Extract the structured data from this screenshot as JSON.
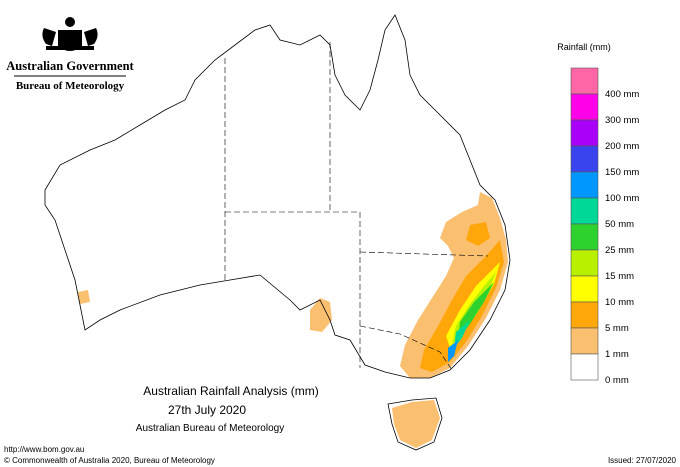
{
  "header": {
    "agency": "Australian Government",
    "bureau": "Bureau of Meteorology"
  },
  "legend": {
    "title": "Rainfall (mm)",
    "items": [
      {
        "color": "#ff66a6",
        "label": "400 mm"
      },
      {
        "color": "#ff00e8",
        "label": "300 mm"
      },
      {
        "color": "#a800f8",
        "label": "200 mm"
      },
      {
        "color": "#3a44ee",
        "label": "150 mm"
      },
      {
        "color": "#0098ff",
        "label": "100 mm"
      },
      {
        "color": "#00d898",
        "label": "50 mm"
      },
      {
        "color": "#2ed22e",
        "label": "25 mm"
      },
      {
        "color": "#b8f000",
        "label": "15 mm"
      },
      {
        "color": "#ffff00",
        "label": "10 mm"
      },
      {
        "color": "#ffa60a",
        "label": "5 mm"
      },
      {
        "color": "#fbbf70",
        "label": "1 mm"
      },
      {
        "color": "#ffffff",
        "label": "0 mm"
      }
    ]
  },
  "caption": {
    "title": "Australian Rainfall Analysis (mm)",
    "date": "27th July 2020",
    "source": "Australian Bureau of Meteorology"
  },
  "footer": {
    "url": "http://www.bom.gov.au",
    "copyright": "© Commonwealth of Australia 2020, Bureau of Meteorology",
    "issued": "Issued: 27/07/2020"
  }
}
